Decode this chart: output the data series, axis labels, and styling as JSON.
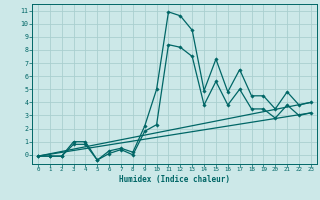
{
  "xlabel": "Humidex (Indice chaleur)",
  "ylabel": "",
  "xlim": [
    -0.5,
    23.5
  ],
  "ylim": [
    -0.7,
    11.5
  ],
  "yticks": [
    0,
    1,
    2,
    3,
    4,
    5,
    6,
    7,
    8,
    9,
    10,
    11
  ],
  "xticks": [
    0,
    1,
    2,
    3,
    4,
    5,
    6,
    7,
    8,
    9,
    10,
    11,
    12,
    13,
    14,
    15,
    16,
    17,
    18,
    19,
    20,
    21,
    22,
    23
  ],
  "bg_color": "#cce8e8",
  "grid_color": "#aacfcf",
  "line_color": "#006666",
  "line1_x": [
    0,
    1,
    2,
    3,
    4,
    5,
    6,
    7,
    8,
    9,
    10,
    11,
    12,
    13,
    14,
    15,
    16,
    17,
    18,
    19,
    20,
    21,
    22,
    23
  ],
  "line1_y": [
    -0.1,
    -0.1,
    -0.1,
    1.0,
    1.0,
    -0.4,
    0.3,
    0.5,
    0.2,
    2.2,
    5.0,
    10.9,
    10.6,
    9.5,
    4.9,
    7.3,
    4.8,
    6.5,
    4.5,
    4.5,
    3.5,
    4.8,
    3.8,
    4.0
  ],
  "line2_x": [
    0,
    1,
    2,
    3,
    4,
    5,
    6,
    7,
    8,
    9,
    10,
    11,
    12,
    13,
    14,
    15,
    16,
    17,
    18,
    19,
    20,
    21,
    22,
    23
  ],
  "line2_y": [
    -0.1,
    -0.1,
    -0.1,
    0.8,
    0.8,
    -0.4,
    0.1,
    0.4,
    0.0,
    1.8,
    2.3,
    8.4,
    8.2,
    7.5,
    3.8,
    5.6,
    3.8,
    5.0,
    3.5,
    3.5,
    2.8,
    3.8,
    3.0,
    3.2
  ],
  "line3_x": [
    0,
    23
  ],
  "line3_y": [
    -0.1,
    4.0
  ],
  "line4_x": [
    0,
    23
  ],
  "line4_y": [
    -0.1,
    3.2
  ]
}
